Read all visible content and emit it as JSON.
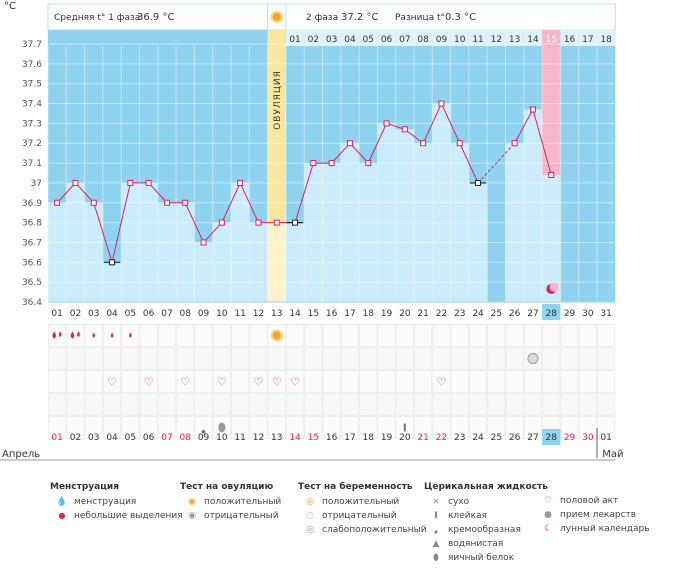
{
  "header": {
    "unit": "°C",
    "phase1_label": "Средняя t° 1 фаза",
    "phase1_value": "36.9 °C",
    "phase2_label": "2 фаза",
    "phase2_value": "37.2 °C",
    "diff_label": "Разница t°",
    "diff_value": "0.3 °C"
  },
  "colors": {
    "bg": "#8fd3f0",
    "bar": "#ccebfc",
    "line": "#d6245f",
    "ovulation": "#fde7a0",
    "highlight": "#f7b6c9",
    "grid": "#b9e2f4"
  },
  "chart_data": {
    "type": "bar",
    "title": "",
    "ylabel": "°C",
    "ylim": [
      36.4,
      37.7
    ],
    "yticks": [
      36.4,
      36.5,
      36.6,
      36.7,
      36.8,
      36.9,
      37,
      37.1,
      37.2,
      37.3,
      37.4,
      37.5,
      37.6,
      37.7
    ],
    "cycle_days": [
      "01",
      "02",
      "03",
      "04",
      "05",
      "06",
      "07",
      "08",
      "09",
      "10",
      "11",
      "12",
      "13",
      "14",
      "15",
      "16",
      "17",
      "18",
      "19",
      "20",
      "21",
      "22",
      "23",
      "24",
      "25",
      "26",
      "27",
      "28",
      "29",
      "30",
      "31"
    ],
    "phase2_days": [
      "01",
      "02",
      "03",
      "04",
      "05",
      "06",
      "07",
      "08",
      "09",
      "10",
      "11",
      "12",
      "13",
      "14",
      "15",
      "16",
      "17",
      "18"
    ],
    "ovulation_label": "ОВУЛЯЦИЯ",
    "ovulation_day": 13,
    "current_day": 28,
    "temperatures": [
      36.9,
      37.0,
      36.9,
      36.6,
      37.0,
      37.0,
      36.9,
      36.9,
      36.7,
      36.8,
      37.0,
      36.8,
      36.8,
      36.8,
      37.1,
      37.1,
      37.2,
      37.1,
      37.3,
      37.27,
      37.2,
      37.4,
      37.2,
      37.0,
      null,
      37.2,
      37.37,
      37.04,
      null,
      null,
      null
    ],
    "marked_days": [
      4,
      14,
      24
    ],
    "dashed_segments": [
      [
        24,
        26
      ]
    ],
    "dates": [
      "01",
      "02",
      "03",
      "04",
      "05",
      "06",
      "07",
      "08",
      "09",
      "10",
      "11",
      "12",
      "13",
      "14",
      "15",
      "16",
      "17",
      "18",
      "19",
      "20",
      "21",
      "22",
      "23",
      "24",
      "25",
      "26",
      "27",
      "28",
      "29",
      "30",
      "01"
    ],
    "weekend_dates": [
      1,
      7,
      8,
      14,
      15,
      21,
      22,
      29,
      30
    ],
    "month_start": "Апрель",
    "month_end": "Май",
    "symptoms": {
      "menstruation_heavy": [
        1,
        2
      ],
      "menstruation_light": [
        3,
        4,
        5
      ],
      "ovulation_test_positive": [
        13
      ],
      "pregnancy_weak_positive": [
        27
      ],
      "intercourse": [
        4,
        6,
        8,
        10,
        12,
        13,
        14,
        22
      ],
      "fluid_creamy": [
        9
      ],
      "fluid_watery": [
        10
      ],
      "fluid_sticky": [
        20
      ]
    }
  },
  "legend": {
    "menstruation": {
      "title": "Менструация",
      "items": [
        "менструация",
        "небольшие выделения"
      ]
    },
    "ovulation_test": {
      "title": "Тест на овуляцию",
      "items": [
        "положительный",
        "отрицательный"
      ]
    },
    "pregnancy_test": {
      "title": "Тест на беременность",
      "items": [
        "положительный",
        "отрицательный",
        "слабоположительный"
      ]
    },
    "cervical": {
      "title": "Церикальная жидкость",
      "items": [
        "сухо",
        "клейкая",
        "кремообразная",
        "водянистая",
        "яичный белок"
      ]
    },
    "other": {
      "items": [
        "половой акт",
        "прием лекарств",
        "лунный календарь"
      ]
    }
  }
}
